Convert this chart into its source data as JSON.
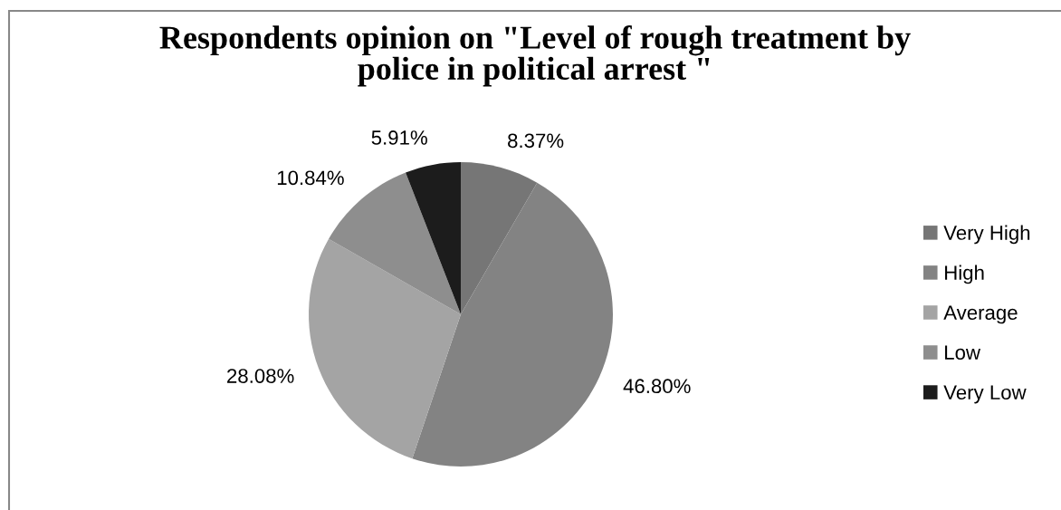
{
  "chart_data": {
    "type": "pie",
    "title": "Respondents opinion on \"Level of rough treatment by police in political arrest \"",
    "categories": [
      "Very High",
      "High",
      "Average",
      "Low",
      "Very Low"
    ],
    "values": [
      8.37,
      46.8,
      28.08,
      10.84,
      5.91
    ],
    "value_labels": [
      "8.37%",
      "46.80%",
      "28.08%",
      "10.84%",
      "5.91%"
    ],
    "colors": [
      "#767676",
      "#838383",
      "#a4a4a4",
      "#8e8e8e",
      "#1c1c1c"
    ],
    "legend": "right"
  }
}
